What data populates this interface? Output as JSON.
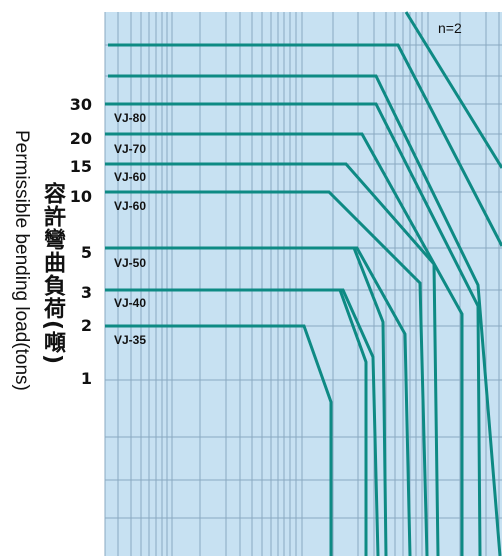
{
  "chart_data": {
    "type": "line",
    "title": "",
    "ylabel": "Permissible bending load(tons)",
    "ylabel_zh": "容許彎曲負荷(噸)",
    "y_scale": "log",
    "y_ticks": [
      "30",
      "20",
      "15",
      "10",
      "5",
      "3",
      "2",
      "1"
    ],
    "annotation": "n=2",
    "grid": true,
    "series": [
      {
        "name": "VJ-35",
        "load_tons": 2
      },
      {
        "name": "VJ-40",
        "load_tons": 3
      },
      {
        "name": "VJ-50",
        "load_tons": 5
      },
      {
        "name": "VJ-60",
        "load_tons": 10
      },
      {
        "name": "VJ-60",
        "load_tons": 15
      },
      {
        "name": "VJ-70",
        "load_tons": 20
      },
      {
        "name": "VJ-80",
        "load_tons": 30
      }
    ],
    "colors": {
      "line": "#0e8a84",
      "grid": "#8aa9c1",
      "background": "#c7e1f2"
    }
  }
}
